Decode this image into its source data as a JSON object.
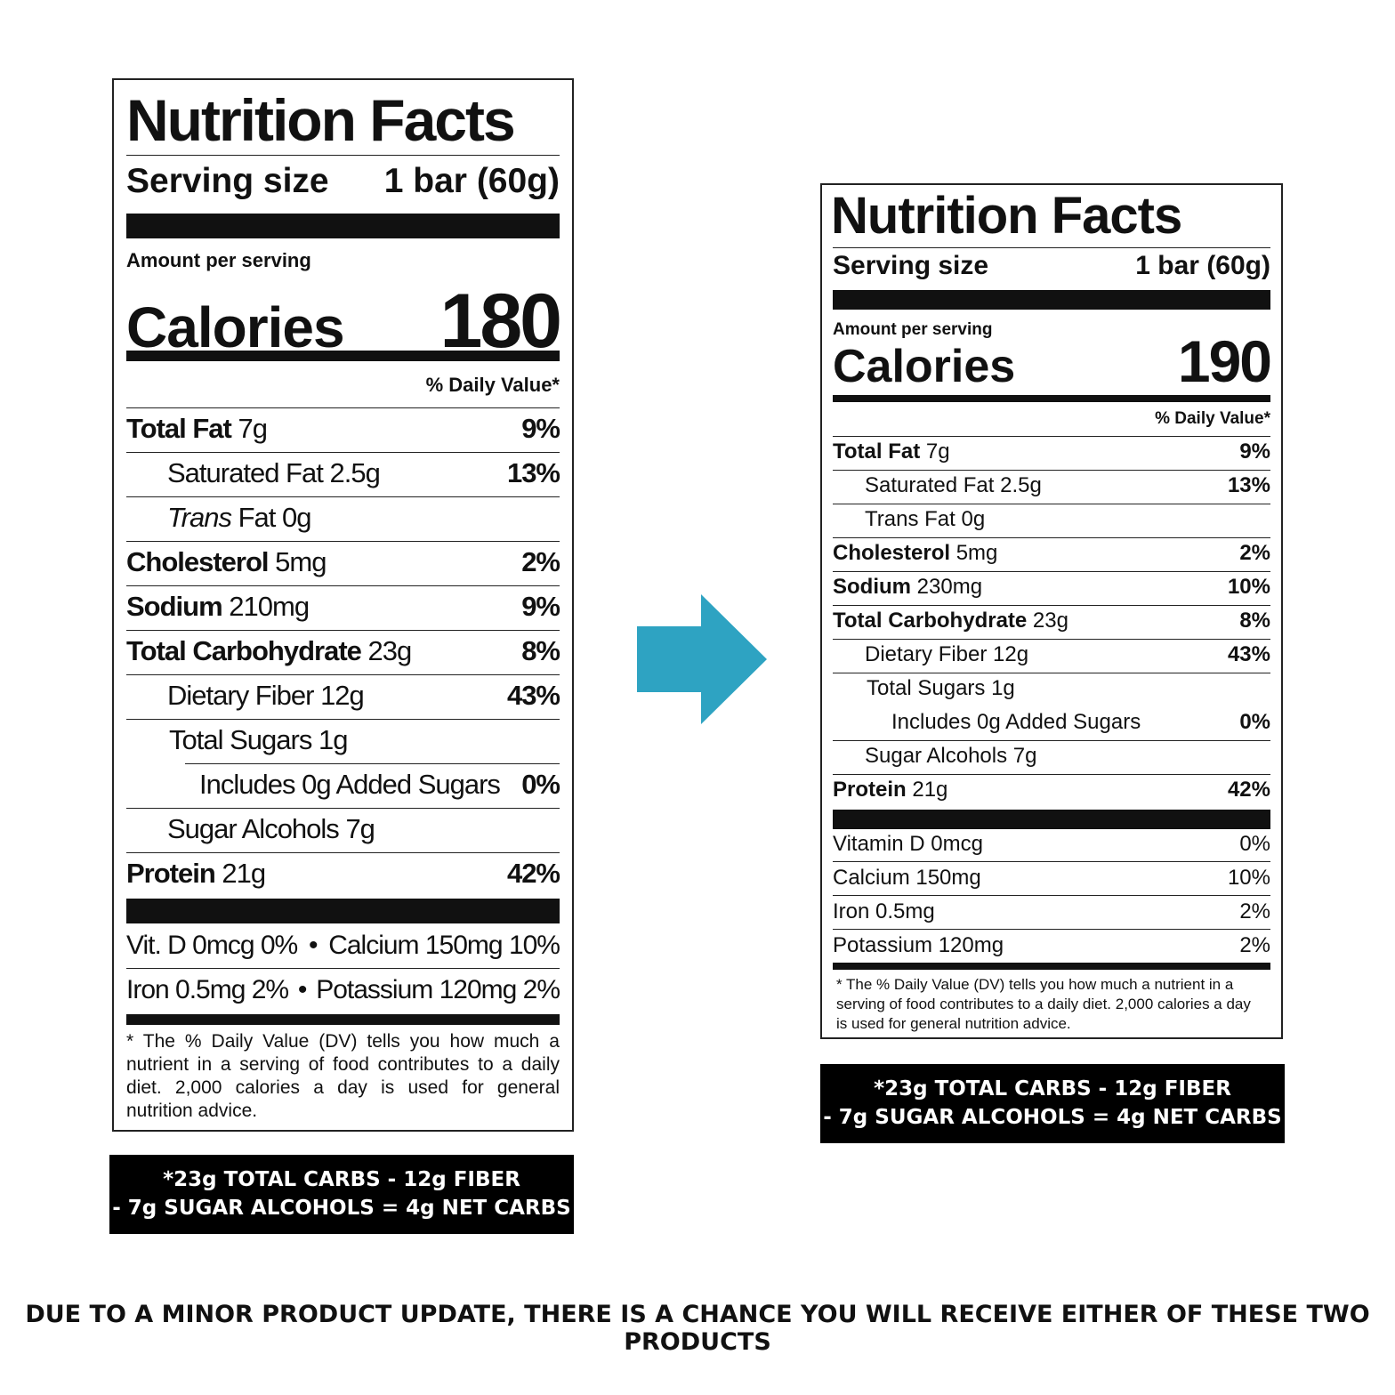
{
  "left": {
    "title": "Nutrition Facts",
    "serving_label": "Serving size",
    "serving_value": "1 bar (60g)",
    "amount_per_serving": "Amount per serving",
    "calories_label": "Calories",
    "calories_value": "180",
    "daily_value_header": "% Daily Value*",
    "nutrients": [
      {
        "name": "Total Fat",
        "amount": "7g",
        "dv": "9%"
      },
      {
        "name": "Saturated Fat",
        "amount": "2.5g",
        "dv": "13%"
      },
      {
        "name": "Trans",
        "name2": "Fat",
        "amount": "0g",
        "dv": ""
      },
      {
        "name": "Cholesterol",
        "amount": "5mg",
        "dv": "2%"
      },
      {
        "name": "Sodium",
        "amount": "210mg",
        "dv": "9%"
      },
      {
        "name": "Total Carbohydrate",
        "amount": "23g",
        "dv": "8%"
      },
      {
        "name": "Dietary Fiber",
        "amount": "12g",
        "dv": "43%"
      },
      {
        "name": "Total Sugars",
        "amount": "1g",
        "dv": ""
      },
      {
        "name": "Includes 0g Added Sugars",
        "amount": "",
        "dv": "0%"
      },
      {
        "name": "Sugar Alcohols",
        "amount": "7g",
        "dv": ""
      },
      {
        "name": "Protein",
        "amount": "21g",
        "dv": "42%"
      }
    ],
    "vitamins_row1_a": "Vit. D 0mcg 0%",
    "vitamins_row1_b": "Calcium 150mg 10%",
    "vitamins_row2_a": "Iron 0.5mg 2%",
    "vitamins_row2_b": "Potassium 120mg 2%",
    "bullet": "•",
    "footnote": "* The % Daily Value (DV) tells you how much a nutrient in a serving of food contributes to a daily diet. 2,000 calories a day is used for general nutrition advice.",
    "net_carbs_line1": "*23g TOTAL CARBS - 12g FIBER",
    "net_carbs_line2": "- 7g SUGAR ALCOHOLS = 4g NET CARBS"
  },
  "right": {
    "title": "Nutrition Facts",
    "serving_label": "Serving size",
    "serving_value": "1 bar (60g)",
    "amount_per_serving": "Amount per serving",
    "calories_label": "Calories",
    "calories_value": "190",
    "daily_value_header": "% Daily Value*",
    "nutrients": [
      {
        "name": "Total Fat",
        "amount": "7g",
        "dv": "9%"
      },
      {
        "name": "Saturated Fat",
        "amount": "2.5g",
        "dv": "13%"
      },
      {
        "name": "Trans Fat",
        "amount": "0g",
        "dv": ""
      },
      {
        "name": "Cholesterol",
        "amount": "5mg",
        "dv": "2%"
      },
      {
        "name": "Sodium",
        "amount": "230mg",
        "dv": "10%"
      },
      {
        "name": "Total Carbohydrate",
        "amount": "23g",
        "dv": "8%"
      },
      {
        "name": "Dietary Fiber",
        "amount": "12g",
        "dv": "43%"
      },
      {
        "name": "Total Sugars",
        "amount": "1g",
        "dv": ""
      },
      {
        "name": "Includes 0g Added Sugars",
        "amount": "",
        "dv": "0%"
      },
      {
        "name": "Sugar Alcohols",
        "amount": "7g",
        "dv": ""
      },
      {
        "name": "Protein",
        "amount": "21g",
        "dv": "42%"
      }
    ],
    "vitamins": [
      {
        "name": "Vitamin D 0mcg",
        "dv": "0%"
      },
      {
        "name": "Calcium 150mg",
        "dv": "10%"
      },
      {
        "name": "Iron 0.5mg",
        "dv": "2%"
      },
      {
        "name": "Potassium 120mg",
        "dv": "2%"
      }
    ],
    "footnote": "* The % Daily Value (DV) tells you how much a nutrient in a serving of food contributes to a daily diet. 2,000 calories a day is used for general nutrition advice.",
    "net_carbs_line1": "*23g TOTAL CARBS - 12g FIBER",
    "net_carbs_line2": "- 7g SUGAR ALCOHOLS = 4g NET CARBS"
  },
  "arrow_color": "#2ea3c2",
  "notice": "DUE TO A MINOR PRODUCT UPDATE, THERE IS A CHANCE YOU WILL RECEIVE EITHER OF THESE TWO PRODUCTS"
}
